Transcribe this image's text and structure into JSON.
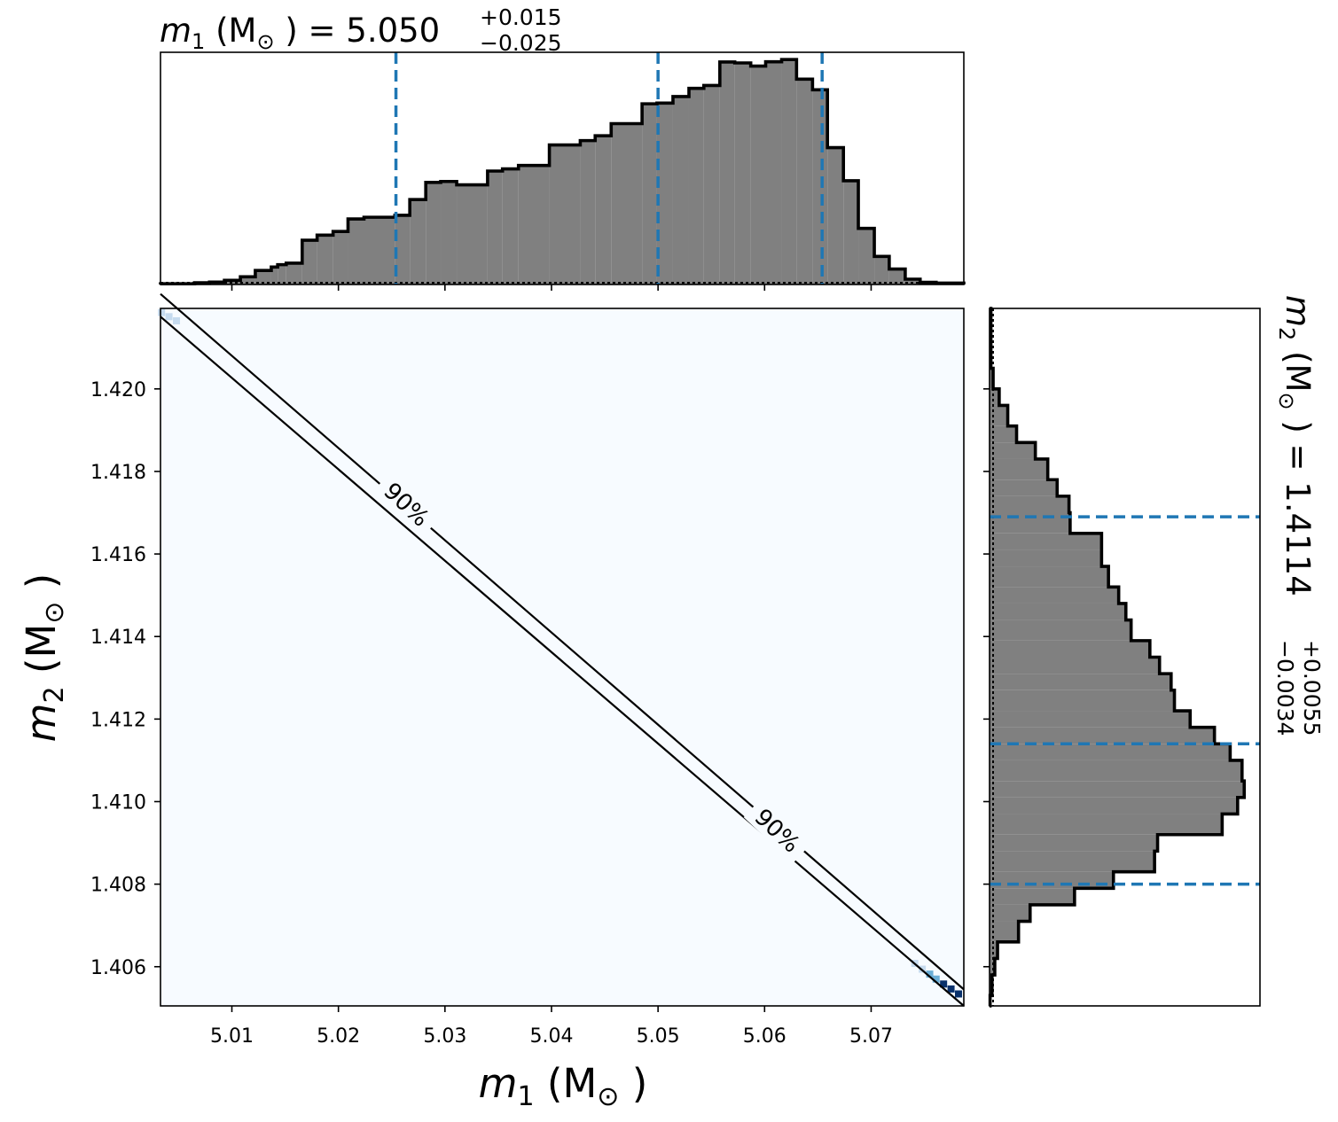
{
  "colors": {
    "hist_fill": "#808080",
    "hist_edge": "#000000",
    "quantile_line": "#1f77b4",
    "density_background": "#f7fbff",
    "density_high": "#08306b",
    "density_mid": "#6baed6",
    "density_low": "#c6dbef"
  },
  "chart_data": [
    {
      "panel": "m1-marginal",
      "type": "histogram",
      "title": {
        "var": "m",
        "sub": "1",
        "unit": " (M",
        "sun": "⊙",
        "eq": " ) = ",
        "median": "5.050",
        "plus": "+0.015",
        "minus": "−0.025"
      },
      "xlim": [
        5.0033,
        5.0787
      ],
      "edges": [
        5.0033,
        5.005,
        5.0065,
        5.0079,
        5.0093,
        5.0108,
        5.0122,
        5.0137,
        5.0143,
        5.0151,
        5.0166,
        5.018,
        5.0195,
        5.0209,
        5.0224,
        5.0253,
        5.0267,
        5.0282,
        5.0296,
        5.0311,
        5.034,
        5.0354,
        5.0369,
        5.0398,
        5.0427,
        5.0441,
        5.0456,
        5.0485,
        5.0499,
        5.0514,
        5.0529,
        5.0543,
        5.0558,
        5.0572,
        5.0587,
        5.0601,
        5.0616,
        5.063,
        5.0645,
        5.0659,
        5.0674,
        5.0688,
        5.0703,
        5.0717,
        5.0732,
        5.0746,
        5.0761,
        5.0787
      ],
      "counts": [
        0.3,
        0.3,
        0.7,
        1.0,
        1.7,
        3.2,
        5.8,
        7.2,
        8.2,
        8.8,
        18.3,
        20.4,
        21.9,
        27.1,
        27.8,
        28.6,
        35.1,
        42.2,
        42.6,
        41.2,
        46.9,
        47.8,
        49.2,
        57.7,
        59.5,
        61.5,
        66.5,
        74.7,
        75.0,
        77.7,
        81.1,
        82.3,
        92.0,
        91.6,
        90.3,
        92.1,
        93.0,
        84.9,
        80.5,
        56.6,
        42.9,
        23.2,
        11.6,
        6.4,
        2.2,
        0.9,
        0.6
      ],
      "yrange": [
        0,
        96
      ],
      "quantiles": [
        5.0254,
        5.05,
        5.0654
      ]
    },
    {
      "panel": "joint-density",
      "type": "heatmap",
      "xlabel": {
        "var": "m",
        "sub": "1",
        "rest": " (M",
        "sun": "⊙",
        "end": " )"
      },
      "ylabel": {
        "var": "m",
        "sub": "2",
        "rest": " (M",
        "sun": "⊙",
        "end": " )"
      },
      "xlim": [
        5.0033,
        5.0787
      ],
      "ylim": [
        1.40505,
        1.42195
      ],
      "xticks": [
        "5.01",
        "5.02",
        "5.03",
        "5.04",
        "5.05",
        "5.06",
        "5.07"
      ],
      "xtick_values": [
        5.01,
        5.02,
        5.03,
        5.04,
        5.05,
        5.06,
        5.07
      ],
      "yticks": [
        "1.406",
        "1.408",
        "1.410",
        "1.412",
        "1.414",
        "1.416",
        "1.418",
        "1.420"
      ],
      "ytick_values": [
        1.406,
        1.408,
        1.41,
        1.412,
        1.414,
        1.416,
        1.418,
        1.42
      ],
      "contour_label": "90%",
      "contour_lines": [
        {
          "x": [
            5.0033,
            5.0787
          ],
          "y": [
            1.42175,
            1.40505
          ]
        },
        {
          "x": [
            5.0033,
            5.0787
          ],
          "y": [
            1.4223,
            1.40545
          ]
        }
      ],
      "label_positions": [
        {
          "x": 5.0264,
          "y": 1.4172,
          "angle": 43
        },
        {
          "x": 5.0612,
          "y": 1.4093,
          "angle": 43
        }
      ],
      "dense_cells": [
        {
          "x": 5.0034,
          "y": 1.42185,
          "level": "low"
        },
        {
          "x": 5.0041,
          "y": 1.42175,
          "level": "low"
        },
        {
          "x": 5.0048,
          "y": 1.42165,
          "level": "low"
        },
        {
          "x": 5.0741,
          "y": 1.40608,
          "level": "low"
        },
        {
          "x": 5.0748,
          "y": 1.40594,
          "level": "low"
        },
        {
          "x": 5.0755,
          "y": 1.40582,
          "level": "mid"
        },
        {
          "x": 5.0761,
          "y": 1.4057,
          "level": "mid"
        },
        {
          "x": 5.0768,
          "y": 1.40558,
          "level": "high"
        },
        {
          "x": 5.0775,
          "y": 1.40546,
          "level": "high"
        },
        {
          "x": 5.0782,
          "y": 1.40534,
          "level": "high"
        }
      ]
    },
    {
      "panel": "m2-marginal",
      "type": "histogram",
      "title": {
        "var": "m",
        "sub": "2",
        "unit": " (M",
        "sun": "⊙",
        "eq": " ) = ",
        "median": "1.4114",
        "plus": "+0.0055",
        "minus": "−0.0034"
      },
      "ylim": [
        1.40505,
        1.42195
      ],
      "edges": [
        1.40505,
        1.4053,
        1.4058,
        1.4062,
        1.4066,
        1.4071,
        1.4075,
        1.4079,
        1.4083,
        1.4088,
        1.4092,
        1.4097,
        1.4101,
        1.4105,
        1.411,
        1.4114,
        1.4118,
        1.4122,
        1.4127,
        1.4131,
        1.4135,
        1.4139,
        1.4144,
        1.4148,
        1.4152,
        1.4157,
        1.4161,
        1.4165,
        1.417,
        1.4174,
        1.4178,
        1.4183,
        1.4187,
        1.4191,
        1.4196,
        1.42,
        1.4205,
        1.42195
      ],
      "counts": [
        0.2,
        0.9,
        1.9,
        2.9,
        10.5,
        14.7,
        30.8,
        44.9,
        59.8,
        60.9,
        84.3,
        89.9,
        92.3,
        91.5,
        87.2,
        81.5,
        72.7,
        67.0,
        65.8,
        61.6,
        58.1,
        51.3,
        49.4,
        46.8,
        43.1,
        40.6,
        40.6,
        29.2,
        28.8,
        24.5,
        21.1,
        16.6,
        9.8,
        6.6,
        3.5,
        1.3,
        0.5
      ],
      "xrange": [
        0,
        98
      ],
      "quantiles": [
        1.408,
        1.4114,
        1.4169
      ]
    }
  ]
}
